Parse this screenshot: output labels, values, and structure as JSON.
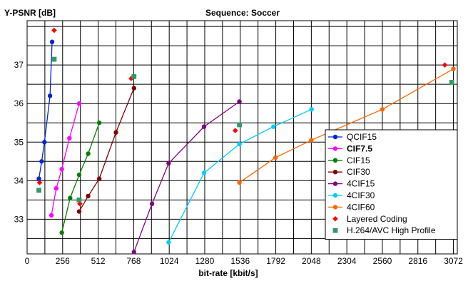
{
  "chart_data": {
    "type": "line",
    "title": "Sequence: Soccer",
    "ylabel": "Y-PSNR [dB]",
    "xlabel": "bit-rate [kbit/s]",
    "xlim": [
      0,
      3100
    ],
    "ylim": [
      32.1,
      38.15
    ],
    "x_ticks": [
      0,
      256,
      512,
      768,
      1024,
      1280,
      1536,
      1792,
      2048,
      2304,
      2560,
      2816,
      3072
    ],
    "y_ticks": [
      33,
      34,
      35,
      36,
      37
    ],
    "grid": true,
    "legend_position": "bottom-right",
    "series": [
      {
        "name": "QCIF15",
        "color": "#0022dd",
        "marker": "circle",
        "x": [
          85,
          105,
          125,
          165,
          180
        ],
        "y": [
          34.05,
          34.5,
          35.0,
          36.2,
          37.6
        ]
      },
      {
        "name": "CIF7.5",
        "color": "#ff00ff",
        "marker": "circle",
        "bold_label": true,
        "x": [
          175,
          210,
          250,
          305,
          375
        ],
        "y": [
          33.1,
          33.8,
          34.3,
          35.1,
          36.0
        ]
      },
      {
        "name": "CIF15",
        "color": "#008000",
        "marker": "circle",
        "x": [
          250,
          310,
          375,
          440,
          520
        ],
        "y": [
          32.65,
          33.55,
          34.15,
          34.7,
          35.5
        ]
      },
      {
        "name": "CIF30",
        "color": "#800000",
        "marker": "circle",
        "x": [
          375,
          440,
          520,
          640,
          770
        ],
        "y": [
          33.2,
          33.6,
          34.05,
          35.25,
          36.4
        ]
      },
      {
        "name": "4CIF15",
        "color": "#800080",
        "marker": "circle",
        "x": [
          770,
          900,
          1020,
          1275,
          1530
        ],
        "y": [
          32.15,
          33.4,
          34.45,
          35.4,
          36.05
        ]
      },
      {
        "name": "4CIF30",
        "color": "#00ccff",
        "marker": "circle",
        "x": [
          1020,
          1275,
          1530,
          1775,
          2050
        ],
        "y": [
          32.4,
          34.2,
          34.95,
          35.4,
          35.85
        ]
      },
      {
        "name": "4CIF60",
        "color": "#ff6600",
        "marker": "circle",
        "x": [
          1530,
          1790,
          2048,
          2560,
          3072
        ],
        "y": [
          33.95,
          34.6,
          35.05,
          35.85,
          36.9
        ]
      },
      {
        "name": "Layered Coding",
        "color": "#ff0000",
        "marker": "diamond",
        "line": false,
        "x": [
          90,
          195,
          380,
          750,
          1500,
          3010
        ],
        "y": [
          33.95,
          37.9,
          33.4,
          36.65,
          35.3,
          37.0
        ]
      },
      {
        "name": "H.264/AVC High Profile",
        "color": "#339966",
        "marker": "square",
        "line": false,
        "x": [
          85,
          195,
          375,
          770,
          1530,
          3060
        ],
        "y": [
          33.75,
          37.15,
          33.5,
          36.7,
          35.45,
          36.55
        ]
      }
    ]
  }
}
